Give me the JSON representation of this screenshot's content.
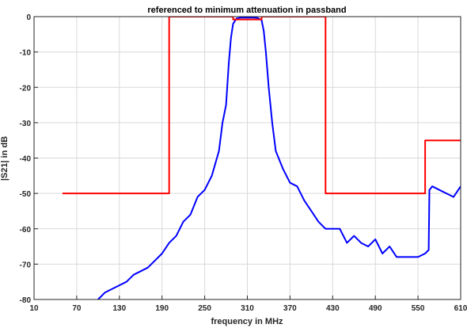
{
  "chart_data": {
    "type": "line",
    "title": "referenced to minimum attenuation in passband",
    "xlabel": "frequency in MHz",
    "ylabel": "|S21| in dB",
    "xlim": [
      10,
      610
    ],
    "ylim": [
      -80,
      0
    ],
    "xticks": [
      10,
      70,
      130,
      190,
      250,
      310,
      370,
      430,
      490,
      550,
      610
    ],
    "yticks": [
      0,
      -10,
      -20,
      -30,
      -40,
      -50,
      -60,
      -70,
      -80
    ],
    "grid": true,
    "legend": "none",
    "colors": {
      "measured": "#0000ff",
      "mask": "#ff0000",
      "grid": "#d9d9d9",
      "axes": "#262626"
    },
    "series": [
      {
        "style": "solid",
        "color": "#0000ff",
        "x": [
          100,
          110,
          120,
          130,
          140,
          150,
          160,
          170,
          180,
          190,
          200,
          210,
          220,
          230,
          240,
          250,
          260,
          270,
          275,
          280,
          284,
          287,
          290,
          295,
          300,
          310,
          320,
          325,
          330,
          333,
          336,
          340,
          345,
          350,
          360,
          370,
          380,
          390,
          400,
          410,
          420,
          430,
          440,
          450,
          460,
          470,
          480,
          490,
          500,
          510,
          520,
          530,
          540,
          550,
          560,
          565,
          566,
          570,
          580,
          590,
          600,
          610
        ],
        "y": [
          -80,
          -78,
          -77,
          -76,
          -75,
          -73,
          -72,
          -71,
          -69,
          -67,
          -64,
          -62,
          -58,
          -56,
          -51,
          -49,
          -45,
          -38,
          -30,
          -25,
          -13,
          -6,
          -2,
          -0.5,
          -0.3,
          -0.3,
          -0.3,
          -0.4,
          -1,
          -4,
          -10,
          -20,
          -30,
          -38,
          -43,
          -47,
          -48,
          -52,
          -55,
          -58,
          -60,
          -60,
          -60,
          -64,
          -62,
          -64,
          -65,
          -63,
          -67,
          -65,
          -68,
          -68,
          -68,
          -68,
          -67,
          -66,
          -49,
          -48,
          -49,
          -50,
          -51,
          -48
        ]
      },
      {
        "style": "solid",
        "color": "#ff0000",
        "x": [
          50,
          200,
          200,
          290,
          290,
          330,
          330,
          420,
          420,
          560,
          560,
          610
        ],
        "y": [
          -50,
          -50,
          0,
          0,
          -0.8,
          -0.8,
          0,
          0,
          -50,
          -50,
          -35,
          -35
        ]
      }
    ]
  }
}
